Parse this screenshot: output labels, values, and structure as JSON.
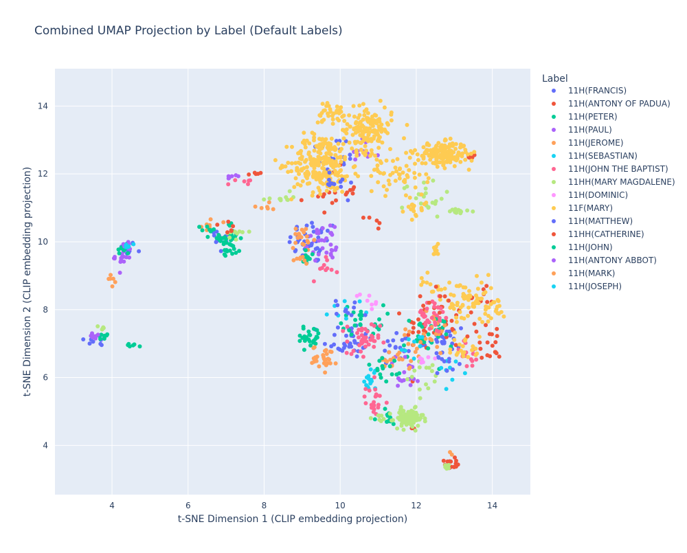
{
  "chart_data": {
    "type": "scatter",
    "title": "Combined UMAP Projection by Label (Default Labels)",
    "xlabel": "t-SNE Dimension 1 (CLIP embedding projection)",
    "ylabel": "t-SNE Dimension 2 (CLIP embedding projection)",
    "xlim": [
      2.5,
      15.0
    ],
    "ylim": [
      2.55,
      15.1
    ],
    "xticks": [
      4,
      6,
      8,
      10,
      12,
      14
    ],
    "yticks": [
      4,
      6,
      8,
      10,
      12,
      14
    ],
    "grid": true,
    "legend_title": "Label",
    "legend_position": "right",
    "plot_background": "#e5ecf6",
    "series": [
      {
        "name": "11H(FRANCIS)",
        "color": "#636efa",
        "clusters": [
          [
            4.4,
            9.8,
            0.2,
            0.2,
            10
          ],
          [
            6.8,
            10.1,
            0.4,
            0.4,
            12
          ],
          [
            9.3,
            10.0,
            0.6,
            0.6,
            40
          ],
          [
            10.2,
            7.1,
            0.6,
            0.5,
            35
          ],
          [
            11.5,
            6.9,
            0.5,
            0.5,
            20
          ],
          [
            12.7,
            7.0,
            0.6,
            0.6,
            25
          ],
          [
            3.6,
            7.1,
            0.3,
            0.15,
            8
          ],
          [
            9.8,
            12.5,
            0.6,
            0.6,
            20
          ]
        ]
      },
      {
        "name": "11H(ANTONY OF PADUA)",
        "color": "#EF553B",
        "clusters": [
          [
            12.5,
            7.5,
            0.7,
            0.7,
            45
          ],
          [
            13.7,
            8.3,
            0.3,
            0.3,
            10
          ],
          [
            9.8,
            11.5,
            0.6,
            0.6,
            18
          ],
          [
            10.9,
            10.6,
            0.3,
            0.2,
            5
          ],
          [
            12.9,
            3.45,
            0.15,
            0.15,
            14
          ],
          [
            7.8,
            12.0,
            0.3,
            0.1,
            5
          ],
          [
            13.4,
            12.5,
            0.15,
            0.1,
            5
          ],
          [
            11.9,
            4.5,
            0.1,
            0.05,
            3
          ]
        ]
      },
      {
        "name": "11H(PETER)",
        "color": "#00cc96",
        "clusters": [
          [
            7.1,
            10.1,
            0.25,
            0.4,
            30
          ],
          [
            9.2,
            7.2,
            0.35,
            0.3,
            25
          ],
          [
            10.6,
            7.7,
            0.5,
            0.4,
            25
          ],
          [
            12.3,
            7.2,
            0.6,
            0.6,
            30
          ],
          [
            11.2,
            4.8,
            0.3,
            0.2,
            12
          ],
          [
            3.8,
            7.2,
            0.2,
            0.1,
            8
          ],
          [
            4.5,
            6.95,
            0.15,
            0.05,
            6
          ]
        ]
      },
      {
        "name": "11H(PAUL)",
        "color": "#ab63fa",
        "clusters": [
          [
            4.3,
            9.6,
            0.2,
            0.4,
            18
          ],
          [
            9.5,
            10.0,
            0.3,
            0.4,
            22
          ],
          [
            11.8,
            6.2,
            0.5,
            0.5,
            18
          ],
          [
            3.55,
            7.2,
            0.2,
            0.1,
            10
          ],
          [
            10.6,
            12.6,
            0.4,
            0.4,
            10
          ]
        ]
      },
      {
        "name": "11H(JEROME)",
        "color": "#FFA15A",
        "clusters": [
          [
            9.0,
            10.0,
            0.3,
            0.5,
            20
          ],
          [
            9.6,
            6.6,
            0.3,
            0.3,
            30
          ],
          [
            11.4,
            6.4,
            0.4,
            0.3,
            20
          ],
          [
            12.2,
            7.3,
            0.6,
            0.6,
            25
          ],
          [
            4.0,
            8.9,
            0.1,
            0.2,
            6
          ],
          [
            8.0,
            11.0,
            0.3,
            0.2,
            6
          ],
          [
            6.6,
            10.6,
            0.2,
            0.3,
            8
          ]
        ]
      },
      {
        "name": "11H(SEBASTIAN)",
        "color": "#19d3f3",
        "clusters": [
          [
            10.8,
            5.9,
            0.15,
            0.4,
            15
          ],
          [
            12.9,
            6.3,
            0.4,
            0.3,
            8
          ],
          [
            10.2,
            8.0,
            0.4,
            0.3,
            8
          ]
        ]
      },
      {
        "name": "11H(JOHN THE BAPTIST)",
        "color": "#FF6692",
        "clusters": [
          [
            10.9,
            5.3,
            0.2,
            0.4,
            20
          ],
          [
            10.6,
            7.0,
            0.4,
            0.6,
            40
          ],
          [
            12.4,
            7.8,
            0.5,
            0.5,
            30
          ],
          [
            13.4,
            6.7,
            0.4,
            0.4,
            15
          ],
          [
            9.6,
            9.3,
            0.3,
            0.4,
            10
          ],
          [
            7.4,
            11.8,
            0.3,
            0.1,
            6
          ]
        ]
      },
      {
        "name": "11HH(MARY MAGDALENE)",
        "color": "#B6E880",
        "clusters": [
          [
            11.8,
            4.8,
            0.35,
            0.25,
            90
          ],
          [
            12.8,
            3.4,
            0.1,
            0.1,
            8
          ],
          [
            12.2,
            11.3,
            0.5,
            0.5,
            22
          ],
          [
            13.2,
            10.9,
            0.3,
            0.1,
            12
          ],
          [
            8.4,
            11.3,
            0.3,
            0.1,
            10
          ],
          [
            7.3,
            10.3,
            0.3,
            0.3,
            10
          ],
          [
            12.3,
            6.0,
            0.5,
            0.5,
            15
          ],
          [
            3.75,
            7.4,
            0.1,
            0.15,
            5
          ],
          [
            11.0,
            4.8,
            0.2,
            0.1,
            6
          ]
        ]
      },
      {
        "name": "11H(DOMINIC)",
        "color": "#FF97FF",
        "clusters": [
          [
            10.8,
            8.3,
            0.4,
            0.3,
            8
          ],
          [
            12.2,
            6.7,
            0.5,
            0.4,
            6
          ]
        ]
      },
      {
        "name": "11F(MARY)",
        "color": "#FECB52",
        "clusters": [
          [
            9.5,
            12.3,
            0.7,
            0.8,
            230
          ],
          [
            10.7,
            13.3,
            0.6,
            0.6,
            150
          ],
          [
            12.7,
            12.6,
            0.6,
            0.3,
            170
          ],
          [
            11.8,
            12.2,
            0.6,
            0.7,
            40
          ],
          [
            13.4,
            8.2,
            0.6,
            0.6,
            60
          ],
          [
            14.0,
            8.0,
            0.3,
            0.3,
            20
          ],
          [
            13.3,
            6.8,
            0.4,
            0.4,
            20
          ],
          [
            12.5,
            8.7,
            0.4,
            0.3,
            15
          ],
          [
            12.5,
            9.8,
            0.1,
            0.15,
            10
          ],
          [
            9.7,
            13.8,
            0.3,
            0.3,
            30
          ],
          [
            12.0,
            11.0,
            0.4,
            0.3,
            18
          ],
          [
            11.0,
            12.0,
            0.5,
            0.5,
            20
          ]
        ]
      },
      {
        "name": "11H(MATTHEW)",
        "color": "#636efa",
        "clusters": [
          [
            9.8,
            11.9,
            0.5,
            0.5,
            12
          ],
          [
            10.3,
            8.0,
            0.5,
            0.3,
            10
          ],
          [
            12.8,
            6.3,
            0.4,
            0.3,
            8
          ]
        ]
      },
      {
        "name": "11HH(CATHERINE)",
        "color": "#EF553B",
        "clusters": [
          [
            13.8,
            7.1,
            0.4,
            0.6,
            20
          ],
          [
            7.1,
            10.4,
            0.3,
            0.2,
            6
          ],
          [
            12.5,
            8.2,
            0.4,
            0.3,
            8
          ]
        ]
      },
      {
        "name": "11H(JOHN)",
        "color": "#00cc96",
        "clusters": [
          [
            4.3,
            9.8,
            0.15,
            0.15,
            10
          ],
          [
            7.1,
            9.8,
            0.2,
            0.2,
            10
          ],
          [
            6.5,
            10.4,
            0.2,
            0.2,
            8
          ],
          [
            9.1,
            9.5,
            0.2,
            0.3,
            10
          ],
          [
            11.2,
            6.2,
            0.4,
            0.5,
            15
          ]
        ]
      },
      {
        "name": "11H(ANTONY ABBOT)",
        "color": "#ab63fa",
        "clusters": [
          [
            4.4,
            9.9,
            0.15,
            0.15,
            8
          ],
          [
            7.2,
            11.9,
            0.2,
            0.1,
            6
          ],
          [
            9.6,
            9.7,
            0.3,
            0.3,
            8
          ]
        ]
      },
      {
        "name": "11H(MARK)",
        "color": "#FFA15A",
        "clusters": [
          [
            12.9,
            3.8,
            0.05,
            0.05,
            2
          ],
          [
            9.0,
            9.4,
            0.2,
            0.2,
            6
          ]
        ]
      },
      {
        "name": "11H(JOSEPH)",
        "color": "#19d3f3",
        "clusters": [
          [
            4.5,
            9.9,
            0.15,
            0.15,
            6
          ],
          [
            12.0,
            7.0,
            0.4,
            0.4,
            8
          ]
        ]
      }
    ]
  }
}
